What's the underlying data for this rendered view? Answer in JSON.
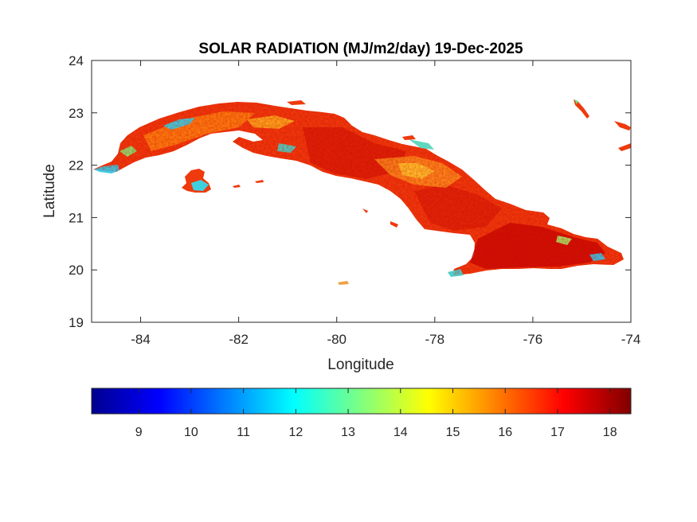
{
  "chart_data": {
    "type": "heatmap",
    "title": "SOLAR RADIATION (MJ/m2/day) 19-Dec-2025",
    "xlabel": "Longitude",
    "ylabel": "Latitude",
    "xlim": [
      -85,
      -74
    ],
    "ylim": [
      19,
      24
    ],
    "xticks": [
      -84,
      -82,
      -80,
      -78,
      -76,
      -74
    ],
    "yticks": [
      19,
      20,
      21,
      22,
      23,
      24
    ],
    "colorbar": {
      "colormap": "jet",
      "range": [
        8.1,
        18.4
      ],
      "ticks": [
        9,
        10,
        11,
        12,
        13,
        14,
        15,
        16,
        17,
        18
      ],
      "orientation": "horizontal"
    },
    "grid": false
  },
  "colors": {
    "axis": "#262626",
    "land_base": "#f03a0a",
    "land_dark": "#c00000",
    "low": "#5fd8e8",
    "mid": "#ffd000"
  }
}
